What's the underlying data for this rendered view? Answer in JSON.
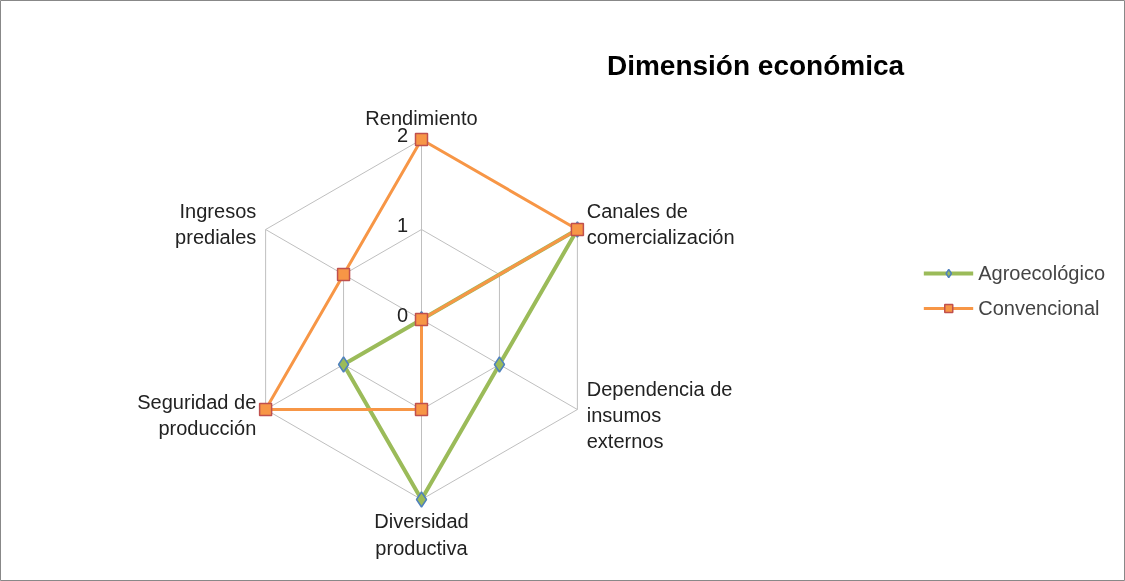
{
  "chart_data": {
    "type": "radar",
    "title": "Dimensión económica",
    "categories": [
      "Rendimiento",
      "Canales de comercialización",
      "Dependencia de insumos externos",
      "Diversidad productiva",
      "Seguridad de producción",
      "Ingresos prediales"
    ],
    "series": [
      {
        "name": "Agroecológico",
        "color": "#9bbb59",
        "marker": "diamond",
        "values": [
          0,
          2,
          1,
          2,
          1,
          0
        ]
      },
      {
        "name": "Convencional",
        "color": "#f79646",
        "marker": "square",
        "values": [
          2,
          2,
          0,
          1,
          2,
          1
        ]
      }
    ],
    "ylim": [
      0,
      2
    ],
    "yticks": [
      0,
      1,
      2
    ],
    "grid": true,
    "legend": "right"
  }
}
